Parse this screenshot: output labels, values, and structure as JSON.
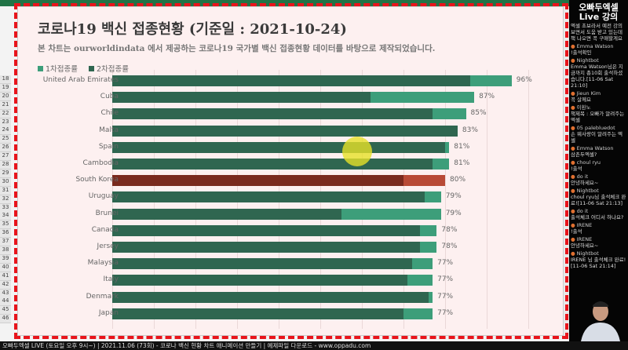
{
  "chart_data": {
    "type": "bar",
    "orientation": "horizontal",
    "stacked_overlay": true,
    "title": "코로나19 백신 접종현황 (기준일 : 2021-10-24)",
    "subtitle": "본 차트는 ourworldindata 에서 제공하는 코로나19 국가별 백신 접종현황 데이터를 바탕으로 제작되었습니다.",
    "legend": [
      "1차접종률",
      "2차접종률"
    ],
    "legend_position": "top-left",
    "xlim": [
      0,
      100
    ],
    "grid": true,
    "categories": [
      "United Arab Emirates",
      "Cuba",
      "Chile",
      "Malta",
      "Spain",
      "Cambodia",
      "South Korea",
      "Uruguay",
      "Brunei",
      "Canada",
      "Jersey",
      "Malaysia",
      "Italy",
      "Denmark",
      "Japan"
    ],
    "series": [
      {
        "name": "1차접종률",
        "values": [
          96,
          87,
          85,
          83,
          81,
          81,
          80,
          79,
          79,
          78,
          78,
          77,
          77,
          77,
          77
        ]
      },
      {
        "name": "2차접종률",
        "values": [
          86,
          62,
          77,
          83,
          80,
          77,
          70,
          75,
          55,
          74,
          74,
          72,
          71,
          76,
          70
        ]
      }
    ],
    "labels": [
      "96%",
      "87%",
      "85%",
      "83%",
      "81%",
      "81%",
      "80%",
      "79%",
      "79%",
      "78%",
      "78%",
      "77%",
      "77%",
      "77%",
      "77%"
    ],
    "colors": {
      "first": "#3d9e7a",
      "second": "#2f6650",
      "highlight_first": "#b84a36",
      "highlight_second": "#7a2a1e"
    },
    "highlight": "South Korea"
  },
  "excel": {
    "rows": [
      "18",
      "19",
      "20",
      "21",
      "22",
      "23",
      "24",
      "25",
      "26",
      "27",
      "28",
      "29",
      "30",
      "31",
      "32",
      "33",
      "34",
      "35",
      "36",
      "37",
      "38",
      "39",
      "40",
      "41",
      "42",
      "43",
      "44",
      "45",
      "46"
    ]
  },
  "chat": {
    "title": "오빠두엑셀 Live 강의",
    "messages": [
      {
        "user": "",
        "text": "엑셀 초보라서 예전 강의 보면서 도움 받고 있는데 책 나오면 꼭 구매할게요"
      },
      {
        "user": "Emma Watson",
        "text": "!출석확인"
      },
      {
        "user": "Nightbot",
        "text": "Emma Watson님은 지금까지 총10회 출석하셨습니다.[11-06 Sat 21:10]"
      },
      {
        "user": "Jieun Kim",
        "text": "꼭 살께요"
      },
      {
        "user": "이환노",
        "text": "책제목 : 오빠가 알려주는 엑셀"
      },
      {
        "user": "05 palebluedot",
        "text": "손 웨사랑이 알려주는 엑셀"
      },
      {
        "user": "Emma Watson",
        "text": "삼촌두엑셀?"
      },
      {
        "user": "choul ryu",
        "text": "!출석"
      },
      {
        "user": "do it",
        "text": "안녕하세요~"
      },
      {
        "user": "Nightbot",
        "text": "choul ryu님 출석체크 완료![11-06 Sat 21:13]"
      },
      {
        "user": "do it",
        "text": "출석체크 어디서 하나요?"
      },
      {
        "user": "IRENE",
        "text": "!출석"
      },
      {
        "user": "IRENE",
        "text": "안녕하세요~"
      },
      {
        "user": "Nightbot",
        "text": "IRENE 님 출석체크 완료![11-06 Sat 21:14]"
      }
    ]
  },
  "bottom_bar": "오빠두엑셀 LIVE (토요일 오후 9시~) | 2021.11.06 (73회) - 코로나 백신 현황 차트 애니메이션 만들기 | 예제파일 다운로드 - www.oppadu.com"
}
